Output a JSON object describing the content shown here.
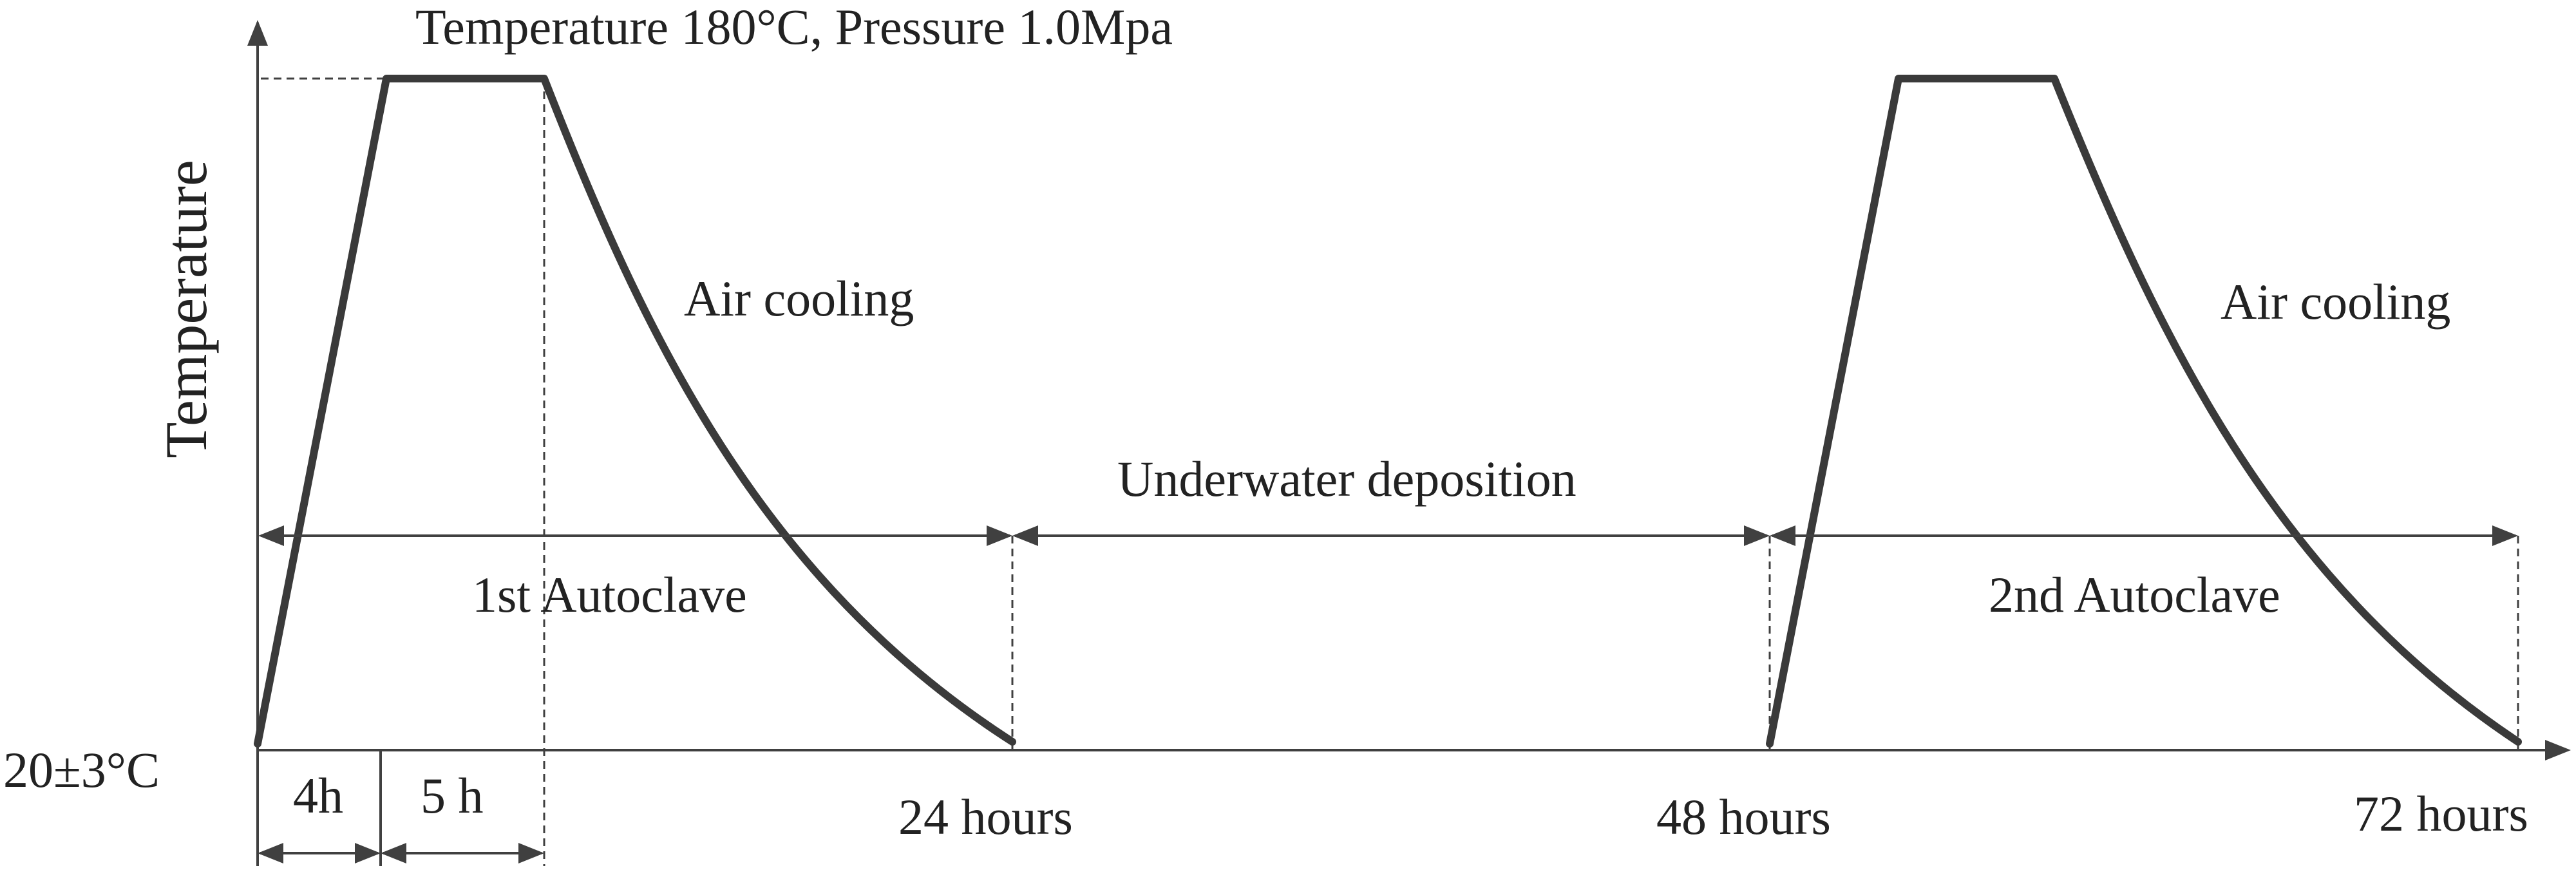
{
  "colors": {
    "curve": "#3a3a3a",
    "axis": "#404040",
    "text": "#222222",
    "background": "#ffffff"
  },
  "labels": {
    "y_axis": "Temperature",
    "peak_condition": "Temperature 180°C, Pressure 1.0Mpa",
    "air_cooling_1": "Air cooling",
    "air_cooling_2": "Air cooling",
    "underwater": "Underwater deposition",
    "first_autoclave": "1st Autoclave",
    "second_autoclave": "2nd Autoclave",
    "base_temp": "20±3°C",
    "seg_4h": "4h",
    "seg_5h": "5 h",
    "t24": "24 hours",
    "t48": "48 hours",
    "t72": "72 hours"
  }
}
